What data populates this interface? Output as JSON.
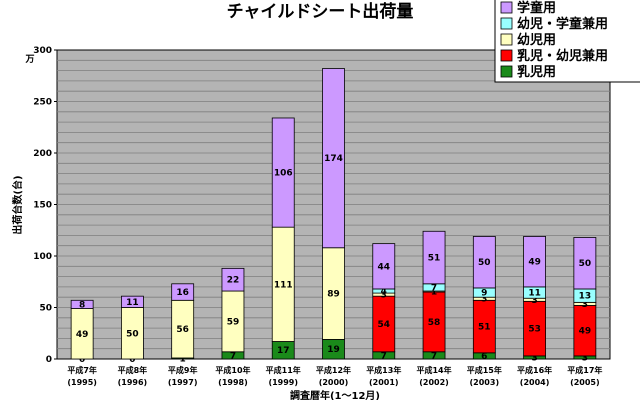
{
  "chart_data": {
    "type": "bar",
    "stacked": true,
    "title": "チャイルドシート出荷量",
    "ylabel": "出荷台数(台)",
    "yunit": "万",
    "xlabel": "調査暦年(1～12月)",
    "ylim": [
      0,
      300
    ],
    "yticks": [
      0,
      50,
      100,
      150,
      200,
      250,
      300
    ],
    "grid": true,
    "legend_position": "top-right",
    "categories": [
      [
        "平成7年",
        "(1995)"
      ],
      [
        "平成8年",
        "(1996)"
      ],
      [
        "平成9年",
        "(1997)"
      ],
      [
        "平成10年",
        "(1998)"
      ],
      [
        "平成11年",
        "(1999)"
      ],
      [
        "平成12年",
        "(2000)"
      ],
      [
        "平成13年",
        "(2001)"
      ],
      [
        "平成14年",
        "(2002)"
      ],
      [
        "平成15年",
        "(2003)"
      ],
      [
        "平成16年",
        "(2004)"
      ],
      [
        "平成17年",
        "(2005)"
      ]
    ],
    "series": [
      {
        "name": "乳児用",
        "color": "#1a8a1a",
        "values": [
          0,
          0,
          1,
          7,
          17,
          19,
          7,
          7,
          6,
          3,
          3
        ]
      },
      {
        "name": "乳児・幼児兼用",
        "color": "#ff0000",
        "values": [
          0,
          0,
          0,
          0,
          0,
          0,
          54,
          58,
          51,
          53,
          49
        ]
      },
      {
        "name": "幼児用",
        "color": "#ffffc0",
        "values": [
          49,
          50,
          56,
          59,
          111,
          89,
          3,
          1,
          3,
          3,
          3
        ]
      },
      {
        "name": "幼児・学童兼用",
        "color": "#99ffff",
        "values": [
          0,
          0,
          0,
          0,
          0,
          0,
          4,
          7,
          9,
          11,
          13
        ]
      },
      {
        "name": "学童用",
        "color": "#cc99ff",
        "values": [
          8,
          11,
          16,
          22,
          106,
          174,
          44,
          51,
          50,
          49,
          50
        ]
      }
    ],
    "labels_shown": {
      "乳児用": [
        true,
        true,
        true,
        true,
        true,
        true,
        true,
        true,
        true,
        true,
        true
      ],
      "乳児・幼児兼用": [
        false,
        false,
        false,
        false,
        false,
        false,
        true,
        true,
        true,
        true,
        true
      ],
      "幼児用": [
        true,
        true,
        true,
        true,
        true,
        true,
        true,
        true,
        true,
        true,
        true
      ],
      "幼児・学童兼用": [
        false,
        false,
        false,
        false,
        false,
        false,
        true,
        true,
        true,
        true,
        true
      ],
      "学童用": [
        true,
        true,
        true,
        true,
        true,
        true,
        true,
        true,
        true,
        true,
        true
      ]
    },
    "legend_order": [
      "学童用",
      "幼児・学童兼用",
      "幼児用",
      "乳児・幼児兼用",
      "乳児用"
    ]
  }
}
